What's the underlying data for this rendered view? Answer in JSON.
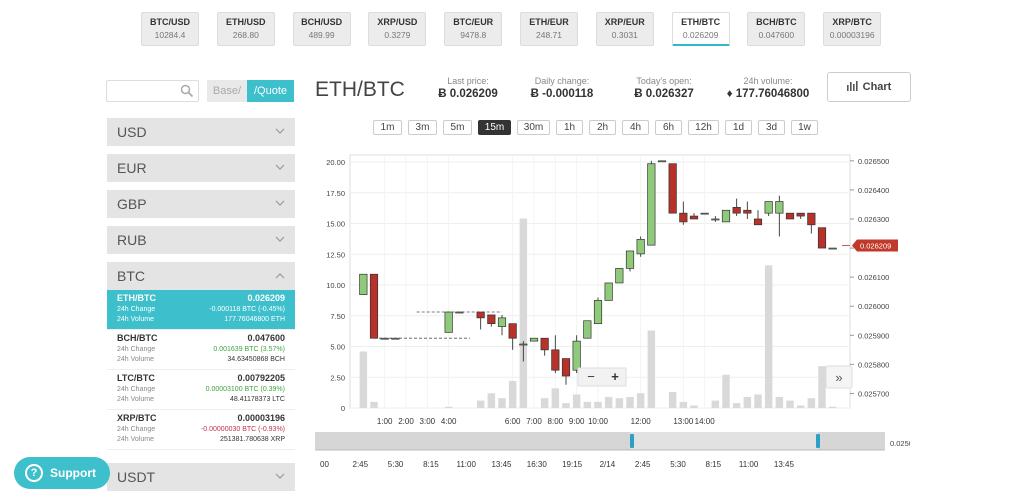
{
  "tickers": [
    {
      "pair": "BTC/USD",
      "value": "10284.4"
    },
    {
      "pair": "ETH/USD",
      "value": "268.80"
    },
    {
      "pair": "BCH/USD",
      "value": "489.99"
    },
    {
      "pair": "XRP/USD",
      "value": "0.3279"
    },
    {
      "pair": "BTC/EUR",
      "value": "9478.8"
    },
    {
      "pair": "ETH/EUR",
      "value": "248.71"
    },
    {
      "pair": "XRP/EUR",
      "value": "0.3031"
    },
    {
      "pair": "ETH/BTC",
      "value": "0.026209"
    },
    {
      "pair": "BCH/BTC",
      "value": "0.047600"
    },
    {
      "pair": "XRP/BTC",
      "value": "0.00003196"
    }
  ],
  "active_ticker": "ETH/BTC",
  "sidebar": {
    "base_label": "Base/",
    "quote_label": "/Quote",
    "currencies": [
      "USD",
      "EUR",
      "GBP",
      "RUB"
    ],
    "open_currency": "BTC",
    "pairs": [
      {
        "name": "ETH/BTC",
        "price": "0.026209",
        "change_label": "24h Change",
        "change": "-0.000118 BTC (-0.45%)",
        "volume_label": "24h Volume",
        "volume": "177.76046800 ETH"
      },
      {
        "name": "BCH/BTC",
        "price": "0.047600",
        "change_label": "24h Change",
        "change": "0.001639 BTC (3.57%)",
        "volume_label": "24h Volume",
        "volume": "34.63450868 BCH"
      },
      {
        "name": "LTC/BTC",
        "price": "0.00792205",
        "change_label": "24h Change",
        "change": "0.00003100 BTC (0.39%)",
        "volume_label": "24h Volume",
        "volume": "48.41178373 LTC"
      },
      {
        "name": "XRP/BTC",
        "price": "0.00003196",
        "change_label": "24h Change",
        "change": "-0.00000030 BTC (-0.93%)",
        "volume_label": "24h Volume",
        "volume": "251381.780638 XRP"
      }
    ],
    "bottom_currency": "USDT"
  },
  "support_label": "Support",
  "header": {
    "pair": "ETH/BTC",
    "last_price_label": "Last price:",
    "last_price": "Ƀ 0.026209",
    "daily_change_label": "Daily change:",
    "daily_change": "Ƀ -0.000118",
    "open_label": "Today's open:",
    "open": "Ƀ 0.026327",
    "volume_label": "24h volume:",
    "volume": "♦ 177.76046800",
    "chart_button": "Chart"
  },
  "timeframes": [
    "1m",
    "3m",
    "5m",
    "15m",
    "30m",
    "1h",
    "2h",
    "4h",
    "6h",
    "12h",
    "1d",
    "3d",
    "1w"
  ],
  "active_timeframe": "15m",
  "chart_data": {
    "type": "candlestick",
    "left_axis": {
      "ticks": [
        "0",
        "2.50",
        "5.00",
        "7.50",
        "10.00",
        "12.50",
        "15.00",
        "17.50",
        "20.00"
      ],
      "range": [
        0,
        20
      ]
    },
    "right_axis": {
      "ticks": [
        "0.025700",
        "0.025800",
        "0.025900",
        "0.026000",
        "0.026100",
        "0.026200",
        "0.026300",
        "0.026400",
        "0.026500"
      ],
      "range": [
        0.02565,
        0.02652
      ]
    },
    "x_ticks": [
      "1:00",
      "2:00",
      "3:00",
      "4:00",
      "6:00",
      "7:00",
      "8:00",
      "9:00",
      "10:00",
      "12:00",
      "13:00",
      "14:00"
    ],
    "current_price_label": "0.026209",
    "current_price": 0.026209,
    "candles": [
      {
        "t": 0,
        "o": 0.02604,
        "h": 0.02611,
        "l": 0.02604,
        "c": 0.02611,
        "v": 4.6
      },
      {
        "t": 1,
        "o": 0.02611,
        "h": 0.02611,
        "l": 0.02589,
        "c": 0.02589,
        "v": 0.5
      },
      {
        "t": 2,
        "o": 0.02589,
        "h": 0.02589,
        "l": 0.02589,
        "c": 0.02589,
        "v": 0
      },
      {
        "t": 3,
        "o": 0.02589,
        "h": 0.02589,
        "l": 0.02589,
        "c": 0.02589,
        "v": 0
      },
      {
        "t": 8,
        "o": 0.02591,
        "h": 0.02598,
        "l": 0.02591,
        "c": 0.02598,
        "v": 0.1
      },
      {
        "t": 9,
        "o": 0.02598,
        "h": 0.02598,
        "l": 0.02598,
        "c": 0.02598,
        "v": 0
      },
      {
        "t": 11,
        "o": 0.02598,
        "h": 0.02598,
        "l": 0.02592,
        "c": 0.02596,
        "v": 0.6
      },
      {
        "t": 12,
        "o": 0.02597,
        "h": 0.02597,
        "l": 0.02593,
        "c": 0.02594,
        "v": 1.2
      },
      {
        "t": 13,
        "o": 0.02593,
        "h": 0.02597,
        "l": 0.0259,
        "c": 0.02596,
        "v": 0.8
      },
      {
        "t": 14,
        "o": 0.02594,
        "h": 0.02594,
        "l": 0.02585,
        "c": 0.02589,
        "v": 2.2
      },
      {
        "t": 15,
        "o": 0.02587,
        "h": 0.02588,
        "l": 0.02581,
        "c": 0.02587,
        "v": 15.4
      },
      {
        "t": 16,
        "o": 0.02588,
        "h": 0.02589,
        "l": 0.02588,
        "c": 0.02589,
        "v": 0
      },
      {
        "t": 17,
        "o": 0.02589,
        "h": 0.02589,
        "l": 0.02583,
        "c": 0.02585,
        "v": 0.8
      },
      {
        "t": 18,
        "o": 0.02585,
        "h": 0.0259,
        "l": 0.02577,
        "c": 0.02578,
        "v": 1.6
      },
      {
        "t": 19,
        "o": 0.02582,
        "h": 0.02582,
        "l": 0.02573,
        "c": 0.02576,
        "v": 0.4
      },
      {
        "t": 20,
        "o": 0.02578,
        "h": 0.0259,
        "l": 0.02577,
        "c": 0.02588,
        "v": 1.1
      },
      {
        "t": 21,
        "o": 0.02589,
        "h": 0.02595,
        "l": 0.02589,
        "c": 0.02595,
        "v": 0.5
      },
      {
        "t": 22,
        "o": 0.02594,
        "h": 0.02603,
        "l": 0.02594,
        "c": 0.02602,
        "v": 0.5
      },
      {
        "t": 23,
        "o": 0.02602,
        "h": 0.02608,
        "l": 0.02602,
        "c": 0.02608,
        "v": 0.9
      },
      {
        "t": 24,
        "o": 0.02608,
        "h": 0.02613,
        "l": 0.02608,
        "c": 0.02613,
        "v": 0.8
      },
      {
        "t": 25,
        "o": 0.02613,
        "h": 0.02619,
        "l": 0.02612,
        "c": 0.02619,
        "v": 0.9
      },
      {
        "t": 26,
        "o": 0.02618,
        "h": 0.02624,
        "l": 0.02617,
        "c": 0.02623,
        "v": 1.2
      },
      {
        "t": 27,
        "o": 0.02621,
        "h": 0.0265,
        "l": 0.02621,
        "c": 0.02649,
        "v": 6.3
      },
      {
        "t": 28,
        "o": 0.0265,
        "h": 0.0265,
        "l": 0.0265,
        "c": 0.0265,
        "v": 0
      },
      {
        "t": 29,
        "o": 0.02649,
        "h": 0.02649,
        "l": 0.02632,
        "c": 0.02632,
        "v": 1.3
      },
      {
        "t": 30,
        "o": 0.02632,
        "h": 0.02636,
        "l": 0.02628,
        "c": 0.02629,
        "v": 0.5
      },
      {
        "t": 31,
        "o": 0.02631,
        "h": 0.02632,
        "l": 0.0263,
        "c": 0.0263,
        "v": 0.2
      },
      {
        "t": 32,
        "o": 0.02632,
        "h": 0.02632,
        "l": 0.02632,
        "c": 0.02632,
        "v": 0
      },
      {
        "t": 33,
        "o": 0.0263,
        "h": 0.02631,
        "l": 0.02629,
        "c": 0.0263,
        "v": 0.6
      },
      {
        "t": 34,
        "o": 0.02629,
        "h": 0.02633,
        "l": 0.02629,
        "c": 0.02633,
        "v": 2.7
      },
      {
        "t": 35,
        "o": 0.02634,
        "h": 0.02637,
        "l": 0.02631,
        "c": 0.02632,
        "v": 0.4
      },
      {
        "t": 36,
        "o": 0.02633,
        "h": 0.02636,
        "l": 0.0263,
        "c": 0.02632,
        "v": 0.9
      },
      {
        "t": 37,
        "o": 0.0263,
        "h": 0.02633,
        "l": 0.02628,
        "c": 0.02628,
        "v": 1.1
      },
      {
        "t": 38,
        "o": 0.02632,
        "h": 0.02636,
        "l": 0.02631,
        "c": 0.02636,
        "v": 11.6
      },
      {
        "t": 39,
        "o": 0.02632,
        "h": 0.02638,
        "l": 0.02624,
        "c": 0.02636,
        "v": 0.9
      },
      {
        "t": 40,
        "o": 0.02632,
        "h": 0.02632,
        "l": 0.0263,
        "c": 0.0263,
        "v": 0.6
      },
      {
        "t": 41,
        "o": 0.02632,
        "h": 0.02632,
        "l": 0.0263,
        "c": 0.02631,
        "v": 0.2
      },
      {
        "t": 42,
        "o": 0.02632,
        "h": 0.02632,
        "l": 0.02625,
        "c": 0.02628,
        "v": 0.8
      },
      {
        "t": 43,
        "o": 0.02627,
        "h": 0.02627,
        "l": 0.0262,
        "c": 0.0262,
        "v": 3.4
      },
      {
        "t": 44,
        "o": 0.0262,
        "h": 0.0262,
        "l": 0.0262,
        "c": 0.0262,
        "v": 0.1
      }
    ],
    "dashed_segments": [
      [
        1,
        10
      ],
      [
        5,
        13
      ]
    ],
    "zoom_out": "−",
    "zoom_in": "+",
    "next_label": "»"
  },
  "navigator": {
    "ticks": [
      "00",
      "2:45",
      "5:30",
      "8:15",
      "11:00",
      "13:45",
      "16:30",
      "19:15",
      "2/14",
      "2:45",
      "5:30",
      "8:15",
      "11:00",
      "13:45"
    ],
    "right_label": "0.0250"
  }
}
